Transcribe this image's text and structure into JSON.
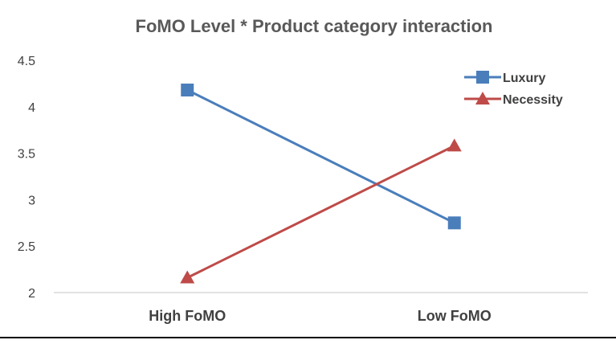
{
  "chart_data": {
    "type": "line",
    "title": "FoMO Level * Product category interaction",
    "categories": [
      "High FoMO",
      "Low FoMO"
    ],
    "series": [
      {
        "name": "Luxury",
        "values": [
          4.18,
          2.75
        ],
        "color": "#4a7ebb",
        "marker": "square"
      },
      {
        "name": "Necessity",
        "values": [
          2.16,
          3.58
        ],
        "color": "#be4b48",
        "marker": "triangle"
      }
    ],
    "xlabel": "",
    "ylabel": "",
    "ylim": [
      2,
      4.5
    ],
    "yticks": [
      "2",
      "2.5",
      "3",
      "3.5",
      "4",
      "4.5"
    ],
    "grid": false,
    "legend_position": "top-right"
  }
}
